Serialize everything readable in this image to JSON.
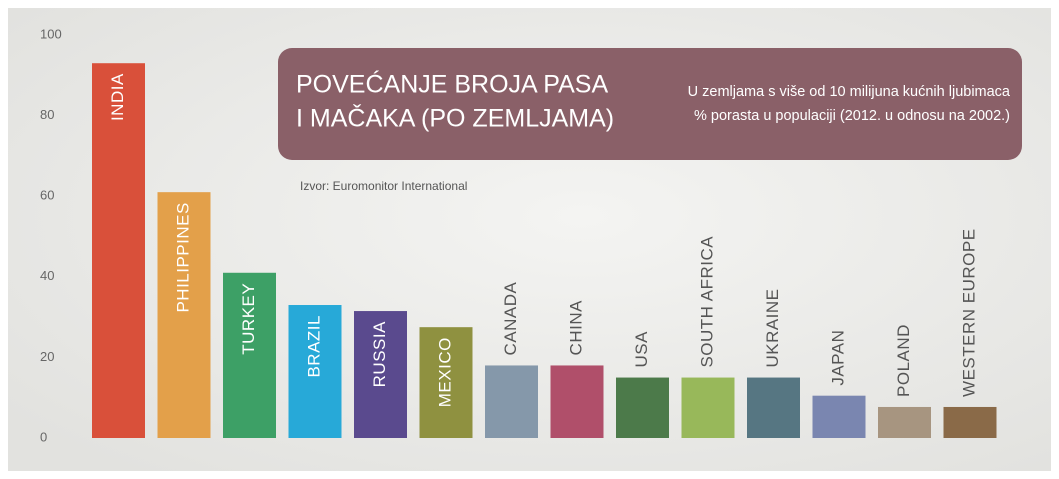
{
  "chart_data": {
    "type": "bar",
    "title_line1": "POVEĆANJE BROJA PASA",
    "title_line2": "I MAČAKA (PO ZEMLJAMA)",
    "subtitle_line1": "U zemljama s više od 10 milijuna kućnih ljubimaca",
    "subtitle_line2": "% porasta u populaciji (2012. u odnosu na 2002.)",
    "source": "Izvor: Euromonitor International",
    "categories": [
      "INDIA",
      "PHILIPPINES",
      "TURKEY",
      "BRAZIL",
      "RUSSIA",
      "MEXICO",
      "CANADA",
      "CHINA",
      "USA",
      "SOUTH AFRICA",
      "UKRAINE",
      "JAPAN",
      "POLAND",
      "WESTERN EUROPE"
    ],
    "values": [
      93,
      61,
      41,
      33,
      31.5,
      27.5,
      18,
      18,
      15,
      15,
      15,
      10.5,
      7.7,
      7.7
    ],
    "colors": [
      "#d9503a",
      "#e3a04a",
      "#3da066",
      "#27a9d8",
      "#5a4a8e",
      "#8f9140",
      "#8598aa",
      "#b04f6a",
      "#4c7a4a",
      "#98b85a",
      "#567682",
      "#7a86b0",
      "#a79580",
      "#8a6a48"
    ],
    "ylim": [
      0,
      100
    ],
    "yticks": [
      0,
      20,
      40,
      60,
      80,
      100
    ],
    "grid": false
  }
}
